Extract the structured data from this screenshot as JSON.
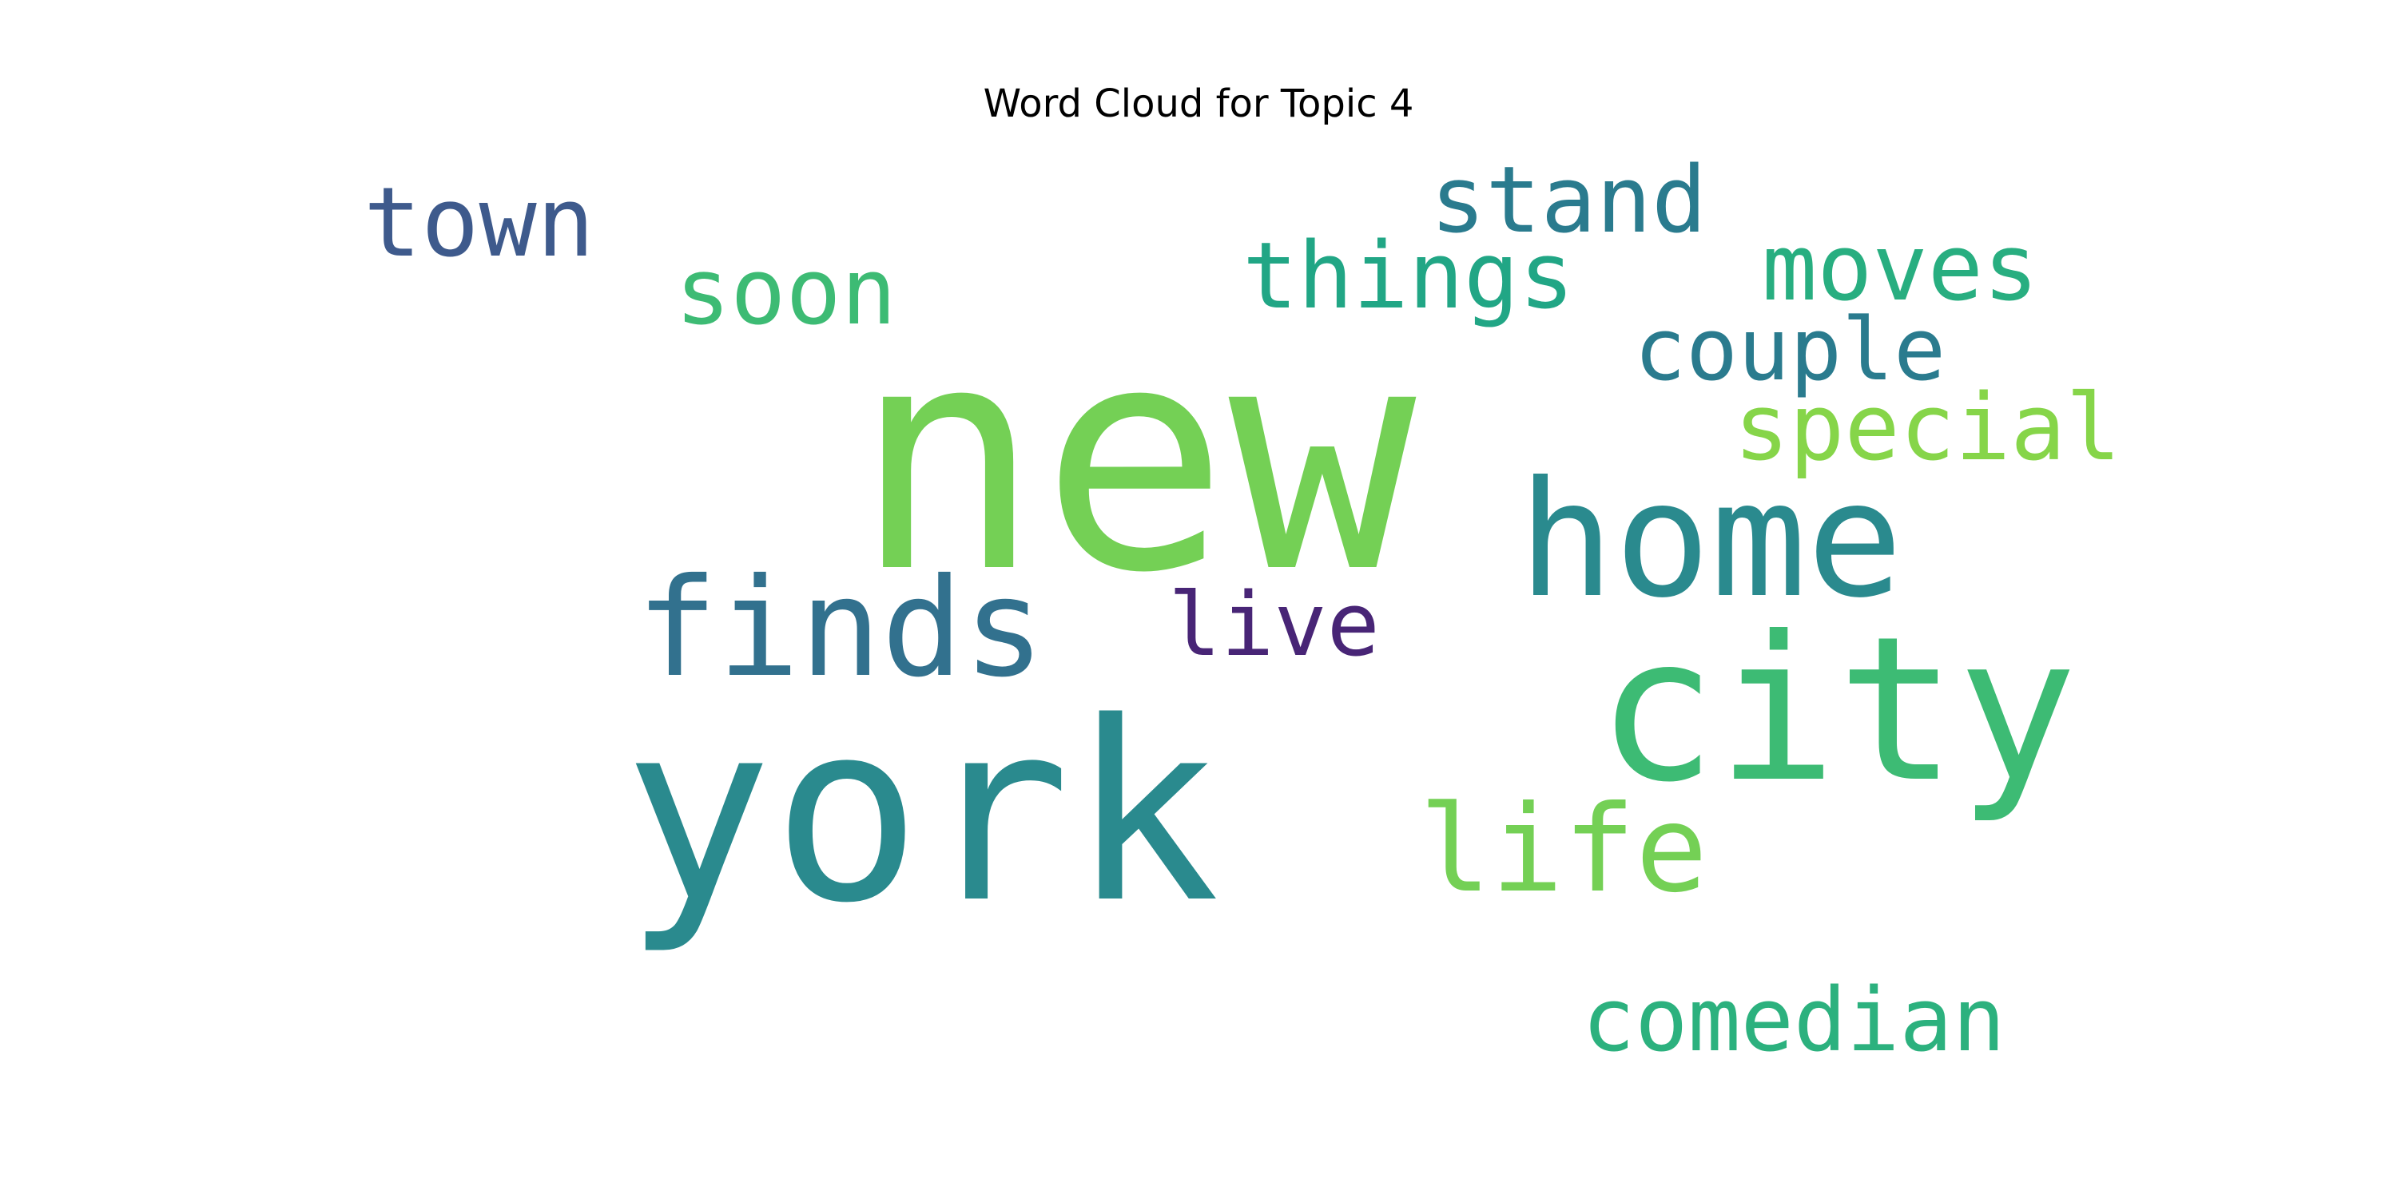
{
  "chart_data": {
    "type": "wordcloud",
    "title": "Word Cloud for Topic 4",
    "background": "#ffffff",
    "words": [
      {
        "text": "new",
        "color": "#74d055"
      },
      {
        "text": "york",
        "color": "#2a8a8e"
      },
      {
        "text": "city",
        "color": "#3dbb74"
      },
      {
        "text": "home",
        "color": "#2a8a8e"
      },
      {
        "text": "finds",
        "color": "#32718e"
      },
      {
        "text": "life",
        "color": "#74d055"
      },
      {
        "text": "town",
        "color": "#3e5a8c"
      },
      {
        "text": "things",
        "color": "#21a685"
      },
      {
        "text": "stand",
        "color": "#2a7b8e"
      },
      {
        "text": "moves",
        "color": "#28ae80"
      },
      {
        "text": "soon",
        "color": "#3dbb74"
      },
      {
        "text": "couple",
        "color": "#2a7b8e"
      },
      {
        "text": "special",
        "color": "#86d549"
      },
      {
        "text": "live",
        "color": "#482576"
      },
      {
        "text": "comedian",
        "color": "#2cb17e"
      }
    ]
  }
}
